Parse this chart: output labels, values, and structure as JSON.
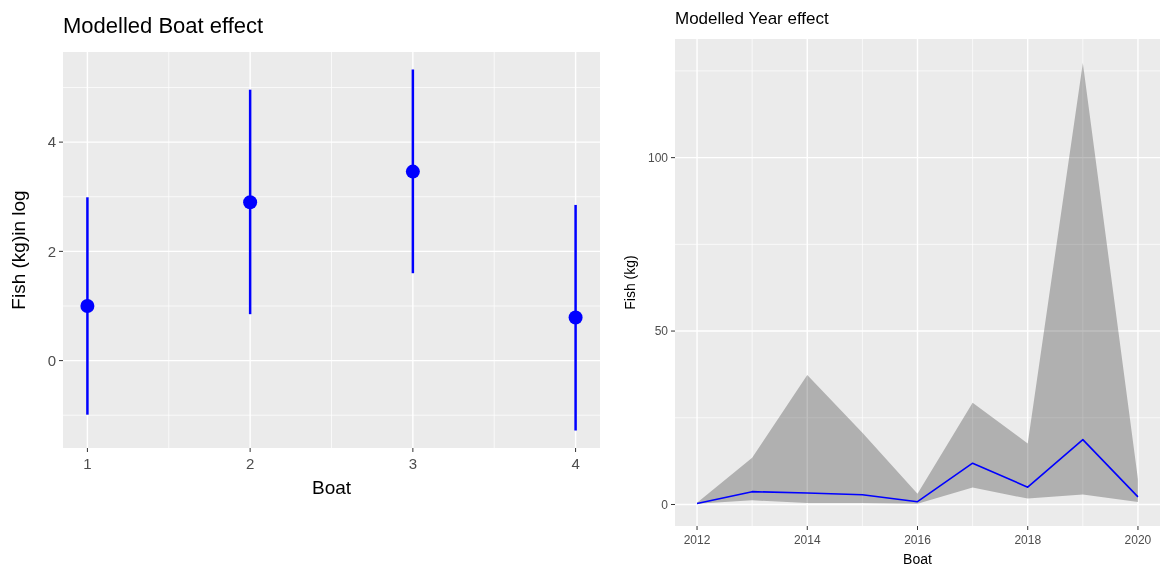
{
  "chart_data": [
    {
      "type": "scatter",
      "title": "Modelled Boat effect",
      "xlabel": "Boat",
      "ylabel": "Fish (kg)in log",
      "x": [
        1,
        2,
        3,
        4
      ],
      "xlim": [
        0.85,
        4.15
      ],
      "xticks": [
        1,
        2,
        3,
        4
      ],
      "ylim": [
        -1.6,
        5.65
      ],
      "yticks": [
        0,
        2,
        4
      ],
      "grid": true,
      "marker": "circle",
      "series": [
        {
          "color": "#0000ff",
          "values": [
            1.0,
            2.9,
            3.46,
            0.79
          ],
          "errors": [
            [
              -0.99,
              2.99
            ],
            [
              0.85,
              4.96
            ],
            [
              1.6,
              5.33
            ],
            [
              -1.28,
              2.85
            ]
          ]
        }
      ]
    },
    {
      "type": "line",
      "title": "Modelled Year effect",
      "xlabel": "Boat",
      "ylabel": "Fish (kg)",
      "x": [
        2012,
        2013,
        2014,
        2015,
        2016,
        2017,
        2018,
        2019,
        2020
      ],
      "xlim": [
        2011.6,
        2020.4
      ],
      "xticks": [
        2012,
        2014,
        2016,
        2018,
        2020
      ],
      "ylim": [
        -6.2,
        134.2
      ],
      "yticks": [
        0,
        50,
        100
      ],
      "grid": true,
      "marker": "none",
      "line_style": "solid",
      "series": [
        {
          "color": "#0000ff",
          "values": [
            0.3,
            3.7,
            3.3,
            2.8,
            0.8,
            11.9,
            5.0,
            18.7,
            2.2
          ],
          "lower": [
            0.2,
            1.2,
            0.4,
            0.4,
            0.2,
            4.9,
            1.7,
            2.9,
            0.7
          ],
          "upper": [
            0.5,
            13.5,
            37.3,
            20.7,
            3.1,
            29.3,
            17.6,
            127.3,
            7.3
          ]
        }
      ]
    }
  ]
}
